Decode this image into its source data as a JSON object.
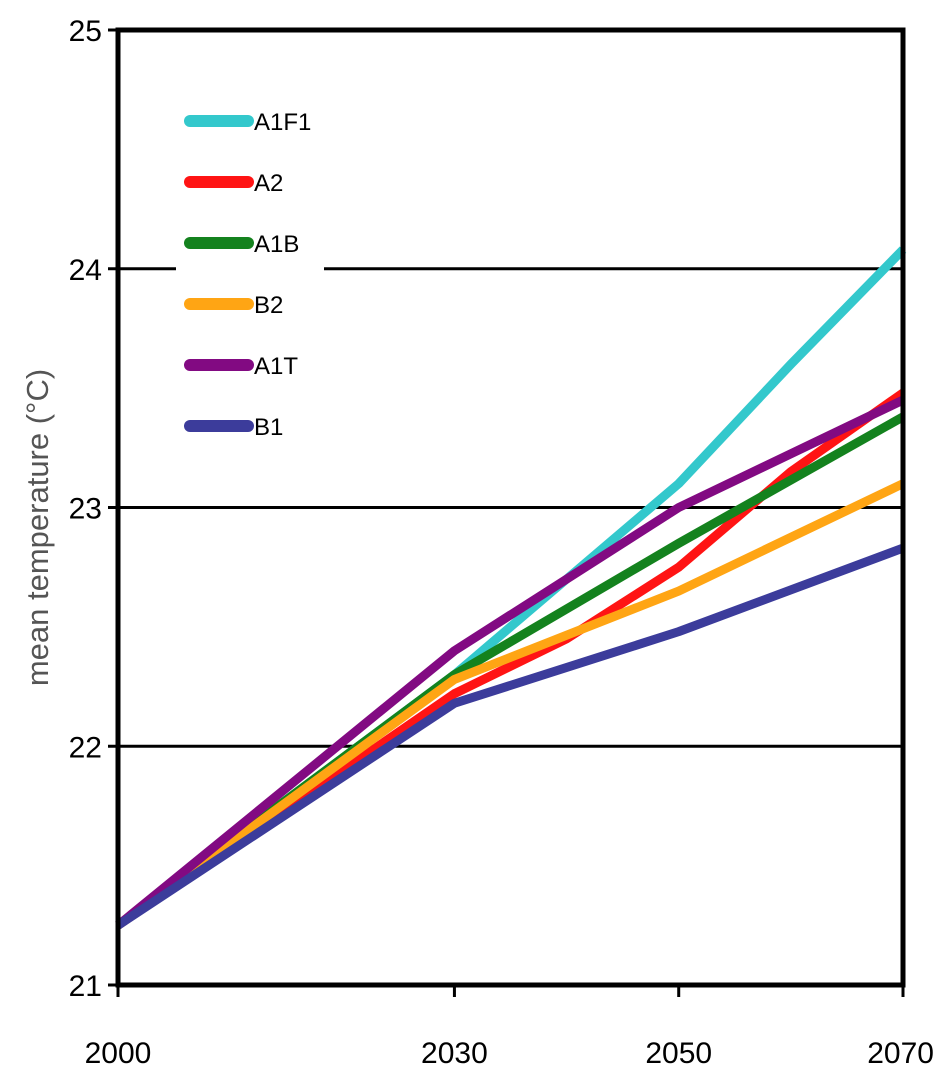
{
  "chart_data": {
    "type": "line",
    "ylabel": "mean temperature (°C)",
    "x": [
      2000,
      2030,
      2050,
      2070
    ],
    "x_tick_labels": [
      "2000",
      "2030",
      "2050",
      "2070"
    ],
    "ylim": [
      21,
      25
    ],
    "y_ticks": [
      21,
      22,
      23,
      24,
      25
    ],
    "y_tick_labels": [
      "21",
      "22",
      "23",
      "24",
      "25"
    ],
    "grid": "horizontal",
    "legend_position": "top-left",
    "series": [
      {
        "name": "A1F1",
        "color": "#33c8cc",
        "points": [
          [
            2000,
            21.25
          ],
          [
            2030,
            22.3
          ],
          [
            2050,
            23.1
          ],
          [
            2060,
            23.6
          ],
          [
            2070,
            24.08
          ]
        ]
      },
      {
        "name": "A2",
        "color": "#ff1414",
        "points": [
          [
            2000,
            21.25
          ],
          [
            2030,
            22.22
          ],
          [
            2040,
            22.45
          ],
          [
            2050,
            22.75
          ],
          [
            2060,
            23.15
          ],
          [
            2070,
            23.48
          ]
        ]
      },
      {
        "name": "A1B",
        "color": "#14821e",
        "points": [
          [
            2000,
            21.25
          ],
          [
            2030,
            22.3
          ],
          [
            2050,
            22.85
          ],
          [
            2070,
            23.38
          ]
        ]
      },
      {
        "name": "B2",
        "color": "#ffa514",
        "points": [
          [
            2000,
            21.25
          ],
          [
            2030,
            22.28
          ],
          [
            2050,
            22.65
          ],
          [
            2070,
            23.1
          ]
        ]
      },
      {
        "name": "A1T",
        "color": "#820a82",
        "points": [
          [
            2000,
            21.25
          ],
          [
            2030,
            22.4
          ],
          [
            2050,
            23.0
          ],
          [
            2070,
            23.45
          ]
        ]
      },
      {
        "name": "B1",
        "color": "#3c3c9b",
        "points": [
          [
            2000,
            21.25
          ],
          [
            2030,
            22.18
          ],
          [
            2050,
            22.48
          ],
          [
            2070,
            22.83
          ]
        ]
      }
    ]
  }
}
